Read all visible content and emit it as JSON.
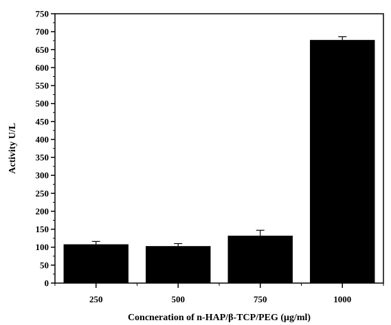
{
  "chart_data": {
    "type": "bar",
    "title": "",
    "xlabel": "Concneration of n-HAP/β-TCP/PEG (μg/ml)",
    "ylabel": "Activity U/L",
    "categories": [
      "250",
      "500",
      "750",
      "1000"
    ],
    "values": [
      108,
      103,
      132,
      677
    ],
    "errors": [
      8,
      7,
      15,
      9
    ],
    "ylim": [
      0,
      750
    ],
    "yticks": [
      "0",
      "50",
      "100",
      "150",
      "200",
      "250",
      "300",
      "350",
      "400",
      "450",
      "500",
      "550",
      "600",
      "650",
      "700",
      "750"
    ],
    "grid": false,
    "bar_color": "#000000"
  }
}
